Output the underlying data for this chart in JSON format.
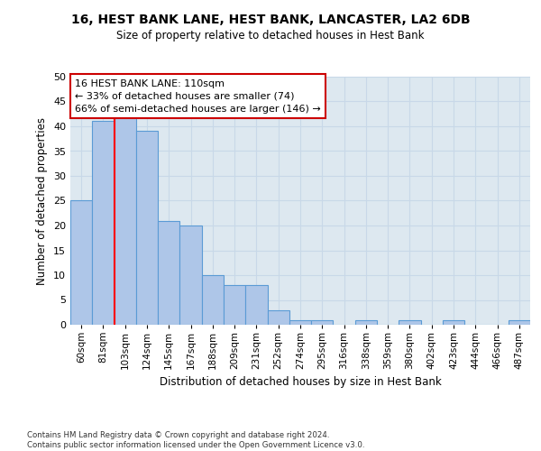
{
  "title1": "16, HEST BANK LANE, HEST BANK, LANCASTER, LA2 6DB",
  "title2": "Size of property relative to detached houses in Hest Bank",
  "xlabel": "Distribution of detached houses by size in Hest Bank",
  "ylabel": "Number of detached properties",
  "bar_color": "#aec6e8",
  "bar_edge_color": "#5b9bd5",
  "categories": [
    "60sqm",
    "81sqm",
    "103sqm",
    "124sqm",
    "145sqm",
    "167sqm",
    "188sqm",
    "209sqm",
    "231sqm",
    "252sqm",
    "274sqm",
    "295sqm",
    "316sqm",
    "338sqm",
    "359sqm",
    "380sqm",
    "402sqm",
    "423sqm",
    "444sqm",
    "466sqm",
    "487sqm"
  ],
  "values": [
    25,
    41,
    42,
    39,
    21,
    20,
    10,
    8,
    8,
    3,
    1,
    1,
    0,
    1,
    0,
    1,
    0,
    1,
    0,
    0,
    1
  ],
  "red_line_x": 1.5,
  "annotation_line1": "16 HEST BANK LANE: 110sqm",
  "annotation_line2": "← 33% of detached houses are smaller (74)",
  "annotation_line3": "66% of semi-detached houses are larger (146) →",
  "annotation_box_color": "#ffffff",
  "annotation_box_edge_color": "#cc0000",
  "ylim": [
    0,
    50
  ],
  "yticks": [
    0,
    5,
    10,
    15,
    20,
    25,
    30,
    35,
    40,
    45,
    50
  ],
  "grid_color": "#c8d8e8",
  "background_color": "#dde8f0",
  "footer1": "Contains HM Land Registry data © Crown copyright and database right 2024.",
  "footer2": "Contains public sector information licensed under the Open Government Licence v3.0."
}
